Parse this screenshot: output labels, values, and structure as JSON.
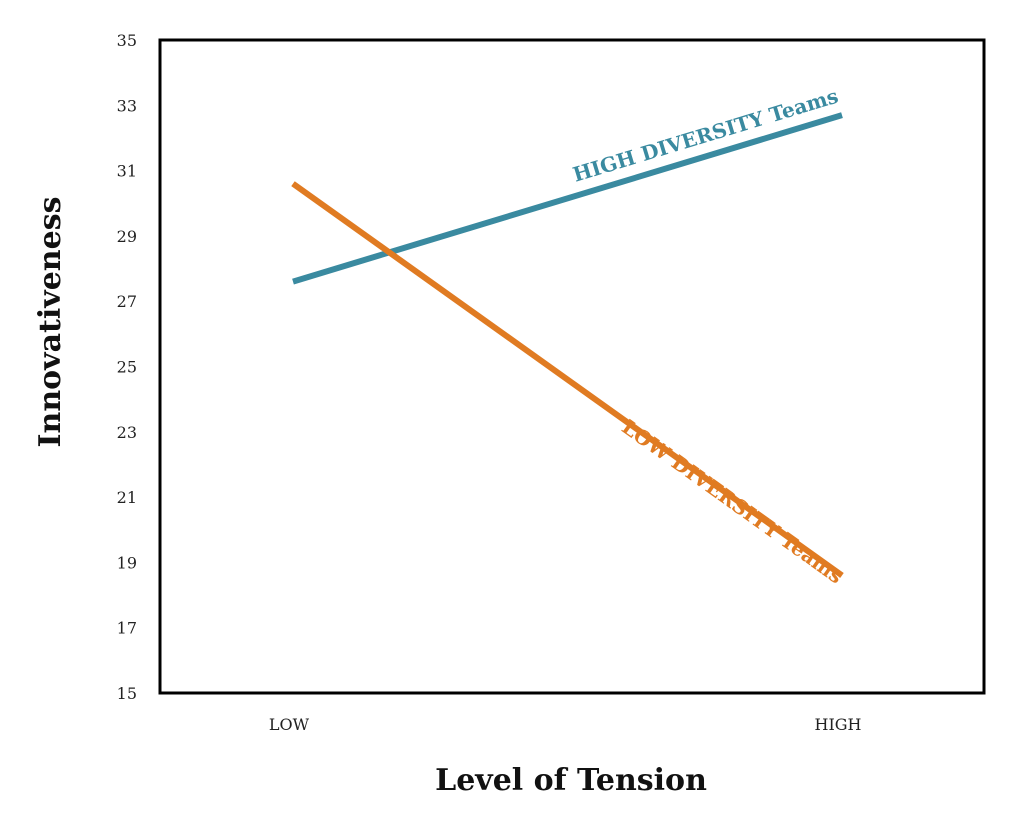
{
  "chart_data": {
    "type": "line",
    "xlabel": "Level of Tension",
    "ylabel": "Innovativeness",
    "categories": [
      "LOW",
      "HIGH"
    ],
    "ylim": [
      15,
      35
    ],
    "yticks": [
      15,
      17,
      19,
      21,
      23,
      25,
      27,
      29,
      31,
      33,
      35
    ],
    "grid": false,
    "series": [
      {
        "name": "HIGH DIVERSITY Teams",
        "values": [
          27.6,
          32.7
        ],
        "color": "#3a8aa0"
      },
      {
        "name": "LOW DIVERSITY Teams",
        "values": [
          30.6,
          18.6
        ],
        "color": "#e07b22"
      }
    ]
  }
}
